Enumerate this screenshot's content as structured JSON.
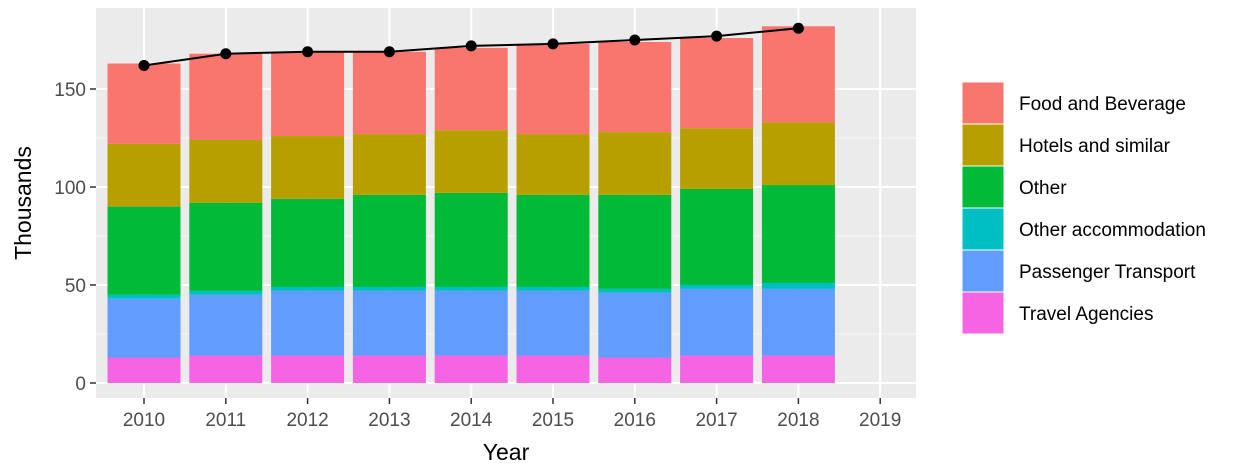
{
  "chart_data": {
    "type": "bar",
    "stacked": true,
    "xlabel": "Year",
    "ylabel": "Thousands",
    "ylim": [
      0,
      190
    ],
    "yticks": [
      0,
      50,
      100,
      150
    ],
    "grid": true,
    "legend_position": "right",
    "categories": [
      "2010",
      "2011",
      "2012",
      "2013",
      "2014",
      "2015",
      "2016",
      "2017",
      "2018",
      "2019"
    ],
    "series": [
      {
        "name": "Travel Agencies",
        "color": "#F564E3",
        "values": [
          13,
          14,
          14,
          14,
          14,
          14,
          13,
          14,
          14,
          null
        ]
      },
      {
        "name": "Passenger Transport",
        "color": "#619CFF",
        "values": [
          30,
          31,
          33,
          33,
          33,
          33,
          33,
          34,
          34,
          null
        ]
      },
      {
        "name": "Other accommodation",
        "color": "#00BFC4",
        "values": [
          2,
          2,
          2,
          2,
          2,
          2,
          2,
          2,
          3,
          null
        ]
      },
      {
        "name": "Other",
        "color": "#00BA38",
        "values": [
          45,
          45,
          45,
          47,
          48,
          47,
          48,
          49,
          50,
          null
        ]
      },
      {
        "name": "Hotels and similar",
        "color": "#B79F00",
        "values": [
          32,
          32,
          32,
          31,
          32,
          31,
          32,
          31,
          32,
          null
        ]
      },
      {
        "name": "Food and Beverage",
        "color": "#F8766D",
        "values": [
          41,
          44,
          43,
          42,
          42,
          46,
          46,
          46,
          49,
          null
        ]
      }
    ],
    "line": {
      "color": "#000000",
      "values": [
        162,
        168,
        169,
        169,
        172,
        173,
        175,
        177,
        181,
        null
      ]
    }
  }
}
